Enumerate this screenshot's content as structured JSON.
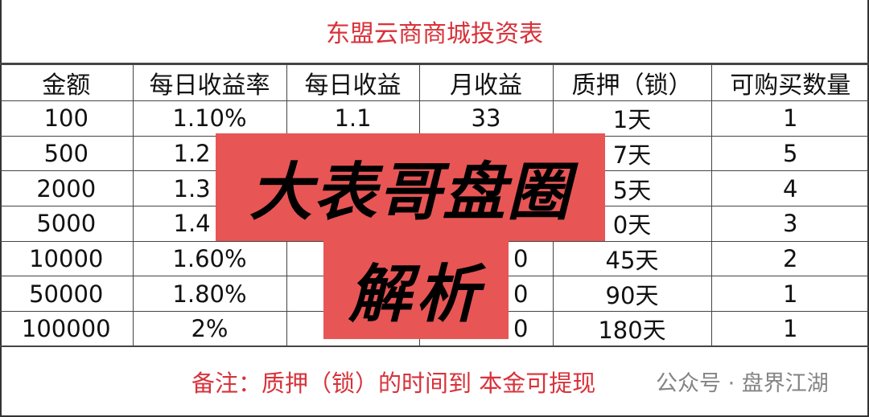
{
  "title": "东盟云商商城投资表",
  "headers": [
    "金额",
    "每日收益率",
    "每日收益",
    "月收益",
    "质押（锁）",
    "可购买数量"
  ],
  "rows": [
    [
      "100",
      "1.10%",
      "1.1",
      "33",
      "1天",
      "1"
    ],
    [
      "500",
      "1.2",
      "",
      "",
      "7天",
      "5"
    ],
    [
      "2000",
      "1.3",
      "",
      "",
      "5天",
      "4"
    ],
    [
      "5000",
      "1.4",
      "",
      "",
      "0天",
      "3"
    ],
    [
      "10000",
      "1.60%",
      "",
      "0",
      "45天",
      "2"
    ],
    [
      "50000",
      "1.80%",
      "",
      "0",
      "90天",
      "1"
    ],
    [
      "100000",
      "2%",
      "",
      "0",
      "180天",
      "1"
    ]
  ],
  "footer": "备注：质押（锁）的时间到 本金可提现",
  "overlay": {
    "line1": "大表哥盘圈",
    "line2": "解析",
    "color": "#e85555"
  },
  "watermark": "公众号 · 盘界江湖"
}
